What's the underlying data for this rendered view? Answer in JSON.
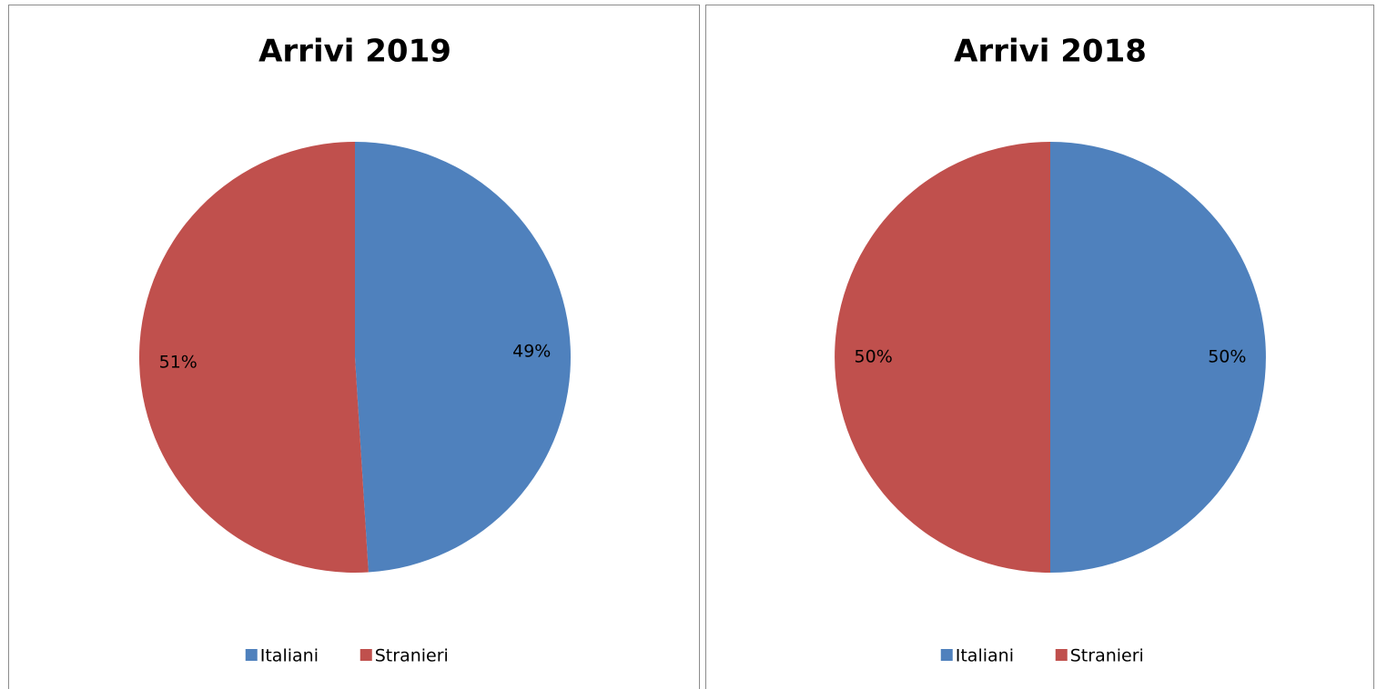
{
  "chart_data": [
    {
      "type": "pie",
      "title": "Arrivi 2019",
      "categories": [
        "Italiani",
        "Stranieri"
      ],
      "values": [
        49,
        51
      ],
      "value_labels": [
        "49%",
        "51%"
      ],
      "colors": [
        "#4f81bd",
        "#c0504d"
      ],
      "legend": "bottom"
    },
    {
      "type": "pie",
      "title": "Arrivi 2018",
      "categories": [
        "Italiani",
        "Stranieri"
      ],
      "values": [
        50,
        50
      ],
      "value_labels": [
        "50%",
        "50%"
      ],
      "colors": [
        "#4f81bd",
        "#c0504d"
      ],
      "legend": "bottom"
    }
  ]
}
